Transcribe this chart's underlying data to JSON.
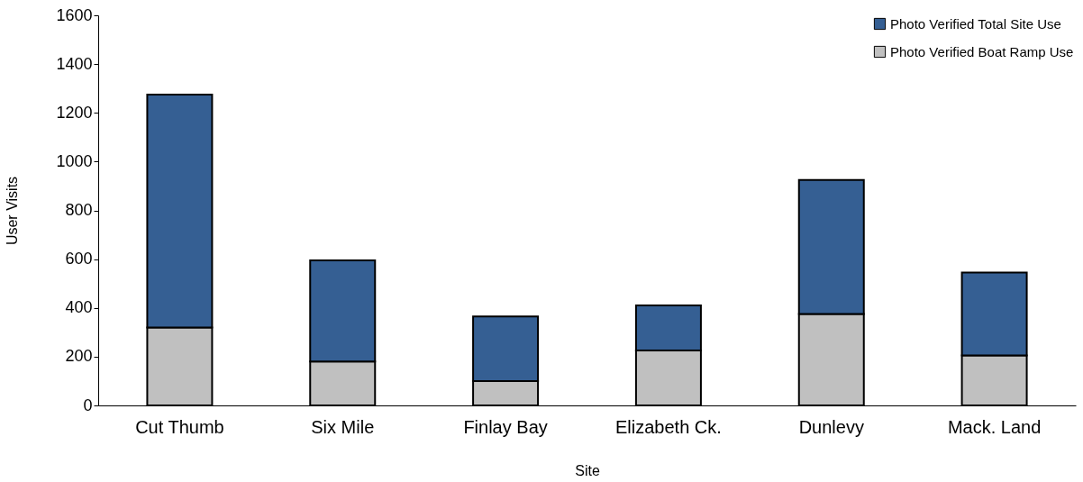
{
  "chart_data": {
    "type": "bar",
    "stacked": true,
    "xlabel": "Site",
    "ylabel": "User Visits",
    "categories": [
      "Cut Thumb",
      "Six Mile",
      "Finlay Bay",
      "Elizabeth Ck.",
      "Dunlevy",
      "Mack. Land"
    ],
    "series": [
      {
        "name": "Photo Verified Boat Ramp Use",
        "color": "#c0c0c0",
        "values": [
          320,
          180,
          100,
          225,
          375,
          205
        ]
      },
      {
        "name": "Photo Verified Total Site Use",
        "color": "#355f93",
        "values": [
          955,
          415,
          265,
          185,
          550,
          340
        ]
      }
    ],
    "ylim": [
      0,
      1600
    ],
    "yticks": [
      0,
      200,
      400,
      600,
      800,
      1000,
      1200,
      1400,
      1600
    ],
    "grid": false,
    "legend": "top right"
  }
}
